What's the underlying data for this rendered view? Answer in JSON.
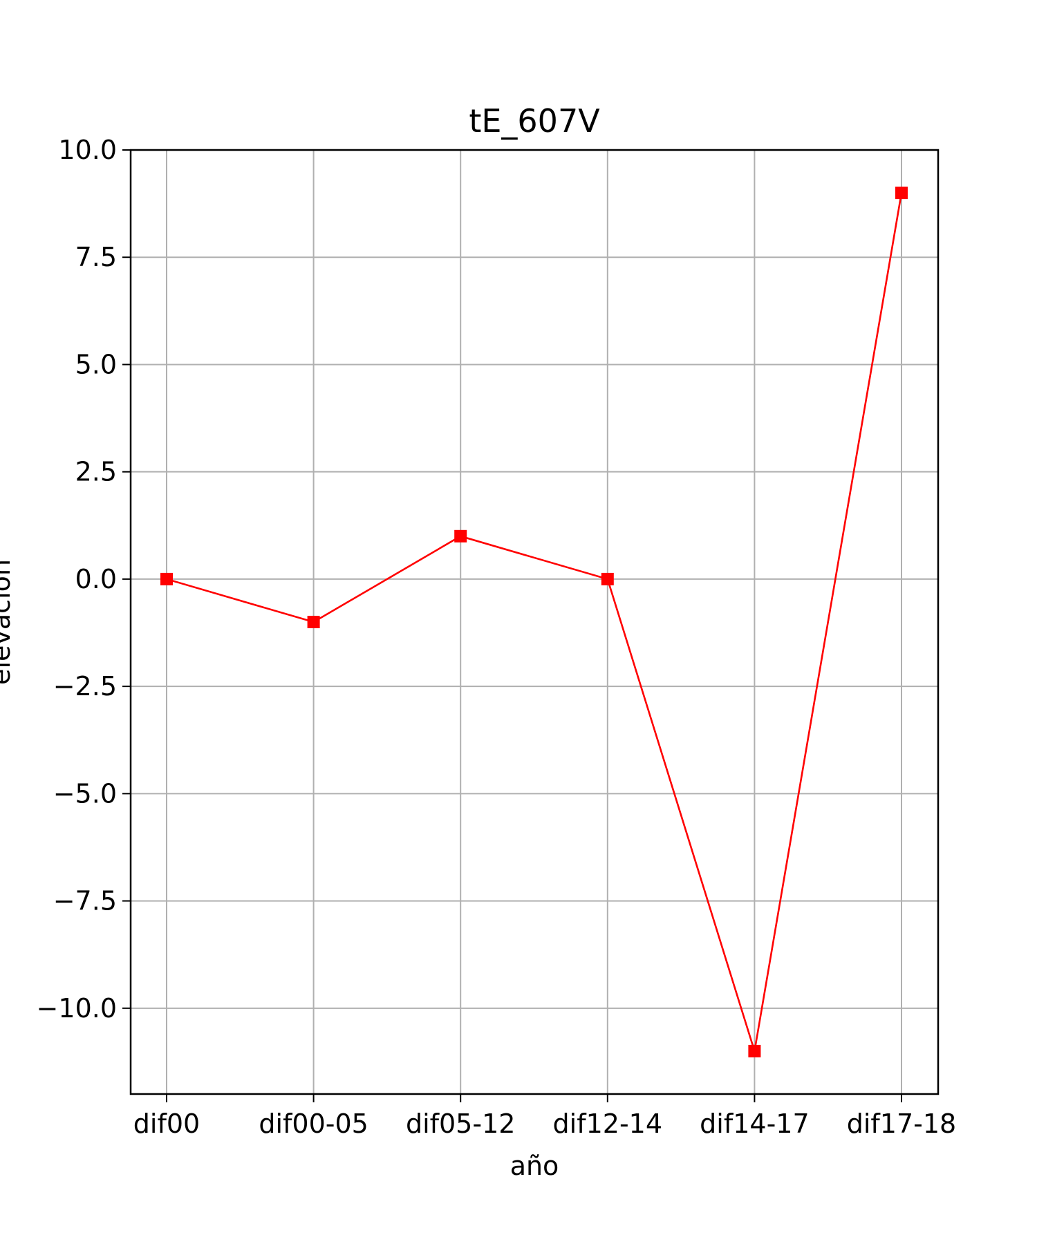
{
  "chart_data": {
    "type": "line",
    "title": "tE_607V",
    "xlabel": "año",
    "ylabel": "elevación",
    "categories": [
      "dif00",
      "dif00-05",
      "dif05-12",
      "dif12-14",
      "dif14-17",
      "dif17-18"
    ],
    "series": [
      {
        "values": [
          0,
          -1,
          1,
          0,
          -11,
          9
        ],
        "color": "#ff0000",
        "marker": "square"
      }
    ],
    "ylim": [
      -12,
      10
    ],
    "yticks": [
      10.0,
      7.5,
      5.0,
      2.5,
      0.0,
      -2.5,
      -5.0,
      -7.5,
      -10.0
    ],
    "ytick_labels": [
      "10.0",
      "7.5",
      "5.0",
      "2.5",
      "0.0",
      "−2.5",
      "−5.0",
      "−7.5",
      "−10.0"
    ],
    "grid": true,
    "grid_color": "#b0b0b0"
  }
}
